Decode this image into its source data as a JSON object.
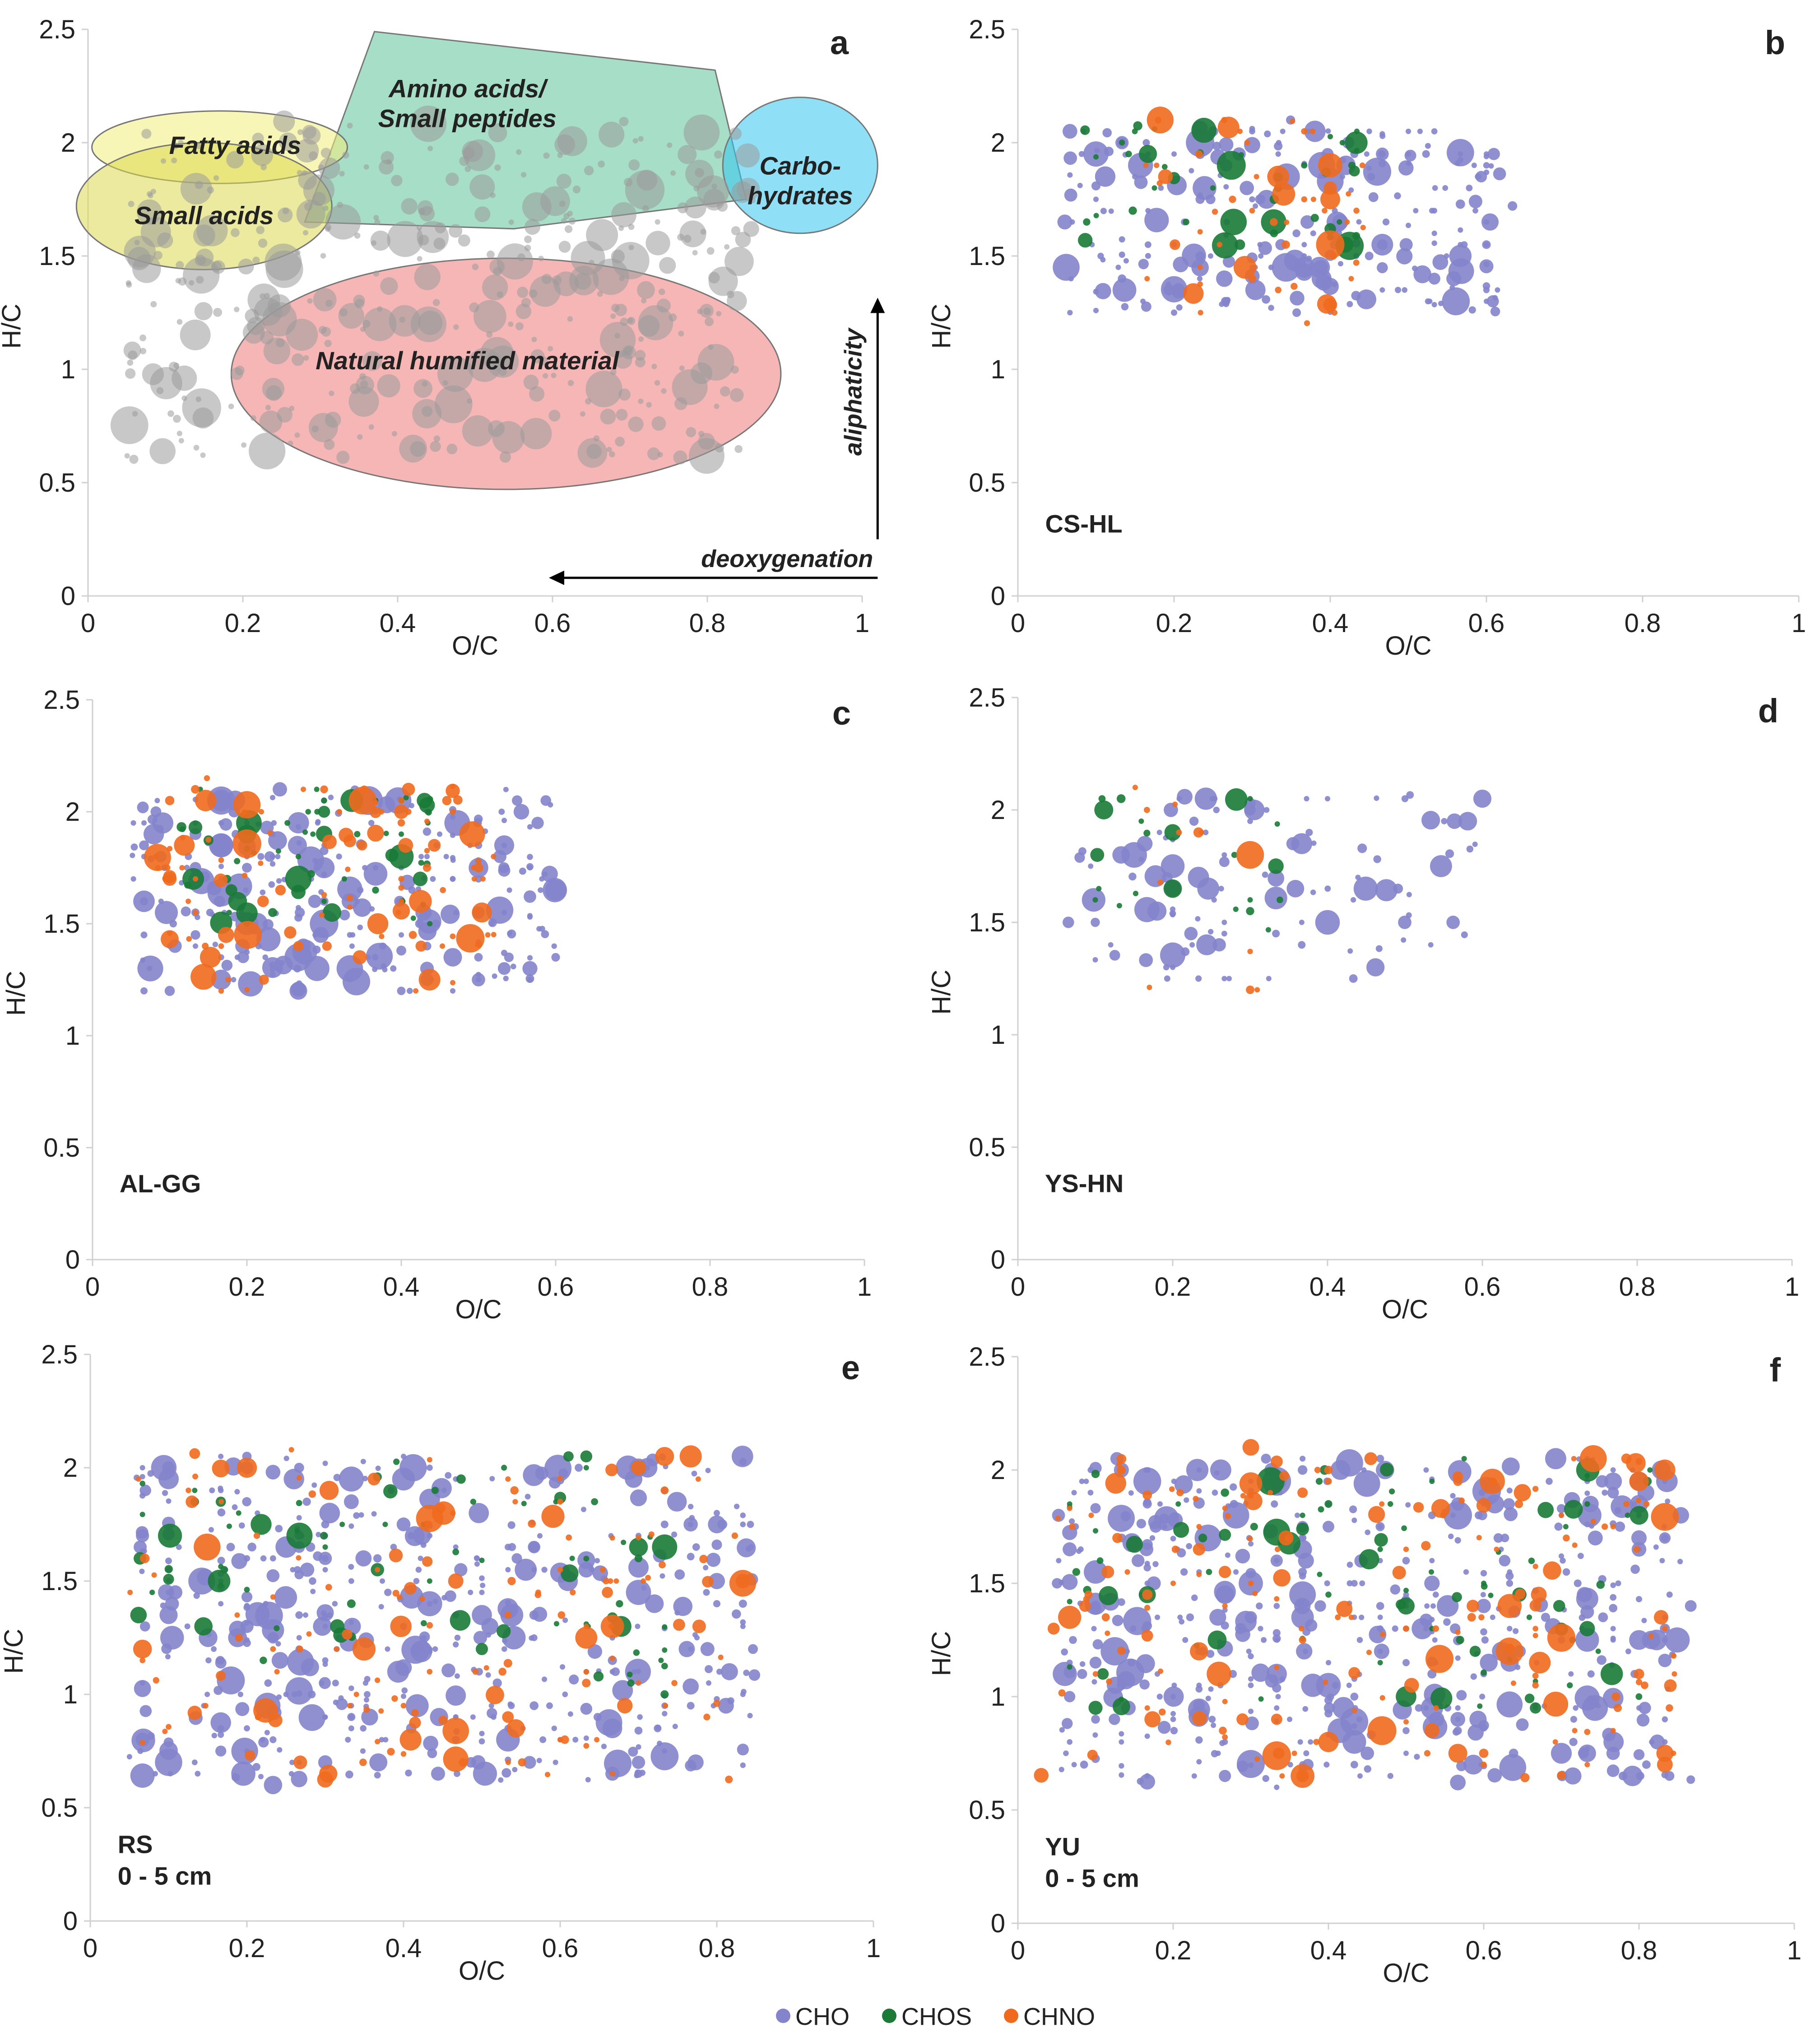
{
  "figure": {
    "legend": [
      {
        "name": "CHO",
        "color": "#8484cc"
      },
      {
        "name": "CHOS",
        "color": "#1a7a36"
      },
      {
        "name": "CHNO",
        "color": "#f06a1e"
      }
    ],
    "colors": {
      "CHO": "#8484cc",
      "CHOS": "#1a7a36",
      "CHNO": "#f06a1e",
      "all": "#9a9a9a",
      "axis": "#d0d0d0"
    }
  },
  "chart_data": [
    {
      "id": "a",
      "type": "scatter",
      "letter": "a",
      "sample": [],
      "xlabel": "O/C",
      "ylabel": "H/C",
      "xlim": [
        0,
        1
      ],
      "ylim": [
        0,
        2.5
      ],
      "xticks": [
        "0",
        "0.2",
        "0.4",
        "0.6",
        "0.8",
        "1"
      ],
      "yticks": [
        "0",
        "0.5",
        "1",
        "1.5",
        "2",
        "2.5"
      ],
      "regions": [
        {
          "name": "Amino acids/ Small peptides",
          "lines": [
            "Amino acids/",
            "Small peptides"
          ],
          "color": "#5cc29a"
        },
        {
          "name": "Fatty acids",
          "lines": [
            "Fatty acids"
          ],
          "color": "#f2ee7a"
        },
        {
          "name": "Small acids",
          "lines": [
            "Small acids"
          ],
          "color": "#dcd84e"
        },
        {
          "name": "Carbohydrates",
          "lines": [
            "Carbo-",
            "hydrates"
          ],
          "color": "#33c6ee"
        },
        {
          "name": "Natural humified material",
          "lines": [
            "Natural humified material"
          ],
          "color": "#f07a7a"
        }
      ],
      "arrows": {
        "vertical": "aliphaticity",
        "horizontal": "deoxygenation"
      },
      "series": [
        {
          "name": "all",
          "spread": [
            0.05,
            0.86,
            0.6,
            2.1
          ],
          "count": 420
        }
      ]
    },
    {
      "id": "b",
      "type": "scatter",
      "letter": "b",
      "sample": [
        "CS-HL"
      ],
      "xlabel": "O/C",
      "ylabel": "H/C",
      "xlim": [
        0,
        1
      ],
      "ylim": [
        0,
        2.5
      ],
      "xticks": [
        "0",
        "0.2",
        "0.4",
        "0.6",
        "0.8",
        "1"
      ],
      "yticks": [
        "0",
        "0.5",
        "1",
        "1.5",
        "2",
        "2.5"
      ],
      "series": [
        {
          "name": "CHO",
          "spread": [
            0.06,
            0.62,
            1.25,
            2.08
          ],
          "count": 260
        },
        {
          "name": "CHOS",
          "spread": [
            0.08,
            0.45,
            1.5,
            2.08
          ],
          "count": 45
        },
        {
          "name": "CHNO",
          "spread": [
            0.15,
            0.45,
            1.2,
            2.12
          ],
          "count": 55
        }
      ]
    },
    {
      "id": "c",
      "type": "scatter",
      "letter": "c",
      "sample": [
        "AL-GG"
      ],
      "xlabel": "O/C",
      "ylabel": "H/C",
      "xlim": [
        0,
        1
      ],
      "ylim": [
        0,
        2.5
      ],
      "xticks": [
        "0",
        "0.2",
        "0.4",
        "0.6",
        "0.8",
        "1"
      ],
      "yticks": [
        "0",
        "0.5",
        "1",
        "1.5",
        "2",
        "2.5"
      ],
      "series": [
        {
          "name": "CHO",
          "spread": [
            0.05,
            0.6,
            1.2,
            2.1
          ],
          "count": 300
        },
        {
          "name": "CHOS",
          "spread": [
            0.1,
            0.45,
            1.5,
            2.1
          ],
          "count": 60
        },
        {
          "name": "CHNO",
          "spread": [
            0.08,
            0.52,
            1.2,
            2.15
          ],
          "count": 110
        }
      ]
    },
    {
      "id": "d",
      "type": "scatter",
      "letter": "d",
      "sample": [
        "YS-HN"
      ],
      "xlabel": "O/C",
      "ylabel": "H/C",
      "xlim": [
        0,
        1
      ],
      "ylim": [
        0,
        2.5
      ],
      "xticks": [
        "0",
        "0.2",
        "0.4",
        "0.6",
        "0.8",
        "1"
      ],
      "yticks": [
        "0",
        "0.5",
        "1",
        "1.5",
        "2",
        "2.5"
      ],
      "series": [
        {
          "name": "CHO",
          "spread": [
            0.06,
            0.6,
            1.25,
            2.08
          ],
          "count": 110
        },
        {
          "name": "CHOS",
          "spread": [
            0.1,
            0.35,
            1.45,
            2.08
          ],
          "count": 22
        },
        {
          "name": "CHNO",
          "spread": [
            0.15,
            0.32,
            1.2,
            2.15
          ],
          "count": 12
        }
      ]
    },
    {
      "id": "e",
      "type": "scatter",
      "letter": "e",
      "sample": [
        "RS",
        "0 - 5 cm"
      ],
      "xlabel": "O/C",
      "ylabel": "H/C",
      "xlim": [
        0,
        1
      ],
      "ylim": [
        0,
        2.5
      ],
      "xticks": [
        "0",
        "0.2",
        "0.4",
        "0.6",
        "0.8",
        "1"
      ],
      "yticks": [
        "0",
        "0.5",
        "1",
        "1.5",
        "2",
        "2.5"
      ],
      "series": [
        {
          "name": "CHO",
          "spread": [
            0.05,
            0.85,
            0.62,
            2.05
          ],
          "count": 520
        },
        {
          "name": "CHOS",
          "spread": [
            0.05,
            0.75,
            1.0,
            2.05
          ],
          "count": 80
        },
        {
          "name": "CHNO",
          "spread": [
            0.05,
            0.85,
            0.62,
            2.08
          ],
          "count": 150
        }
      ]
    },
    {
      "id": "f",
      "type": "scatter",
      "letter": "f",
      "sample": [
        "YU",
        "0 - 5 cm"
      ],
      "xlabel": "O/C",
      "ylabel": "H/C",
      "xlim": [
        0,
        1
      ],
      "ylim": [
        0,
        2.5
      ],
      "xticks": [
        "0",
        "0.2",
        "0.4",
        "0.6",
        "0.8",
        "1"
      ],
      "yticks": [
        "0",
        "0.5",
        "1",
        "1.5",
        "2",
        "2.5"
      ],
      "series": [
        {
          "name": "CHO",
          "spread": [
            0.05,
            0.86,
            0.62,
            2.05
          ],
          "count": 560
        },
        {
          "name": "CHOS",
          "spread": [
            0.05,
            0.82,
            0.95,
            2.05
          ],
          "count": 90
        },
        {
          "name": "CHNO",
          "spread": [
            0.03,
            0.85,
            0.62,
            2.08
          ],
          "count": 190
        }
      ]
    }
  ]
}
